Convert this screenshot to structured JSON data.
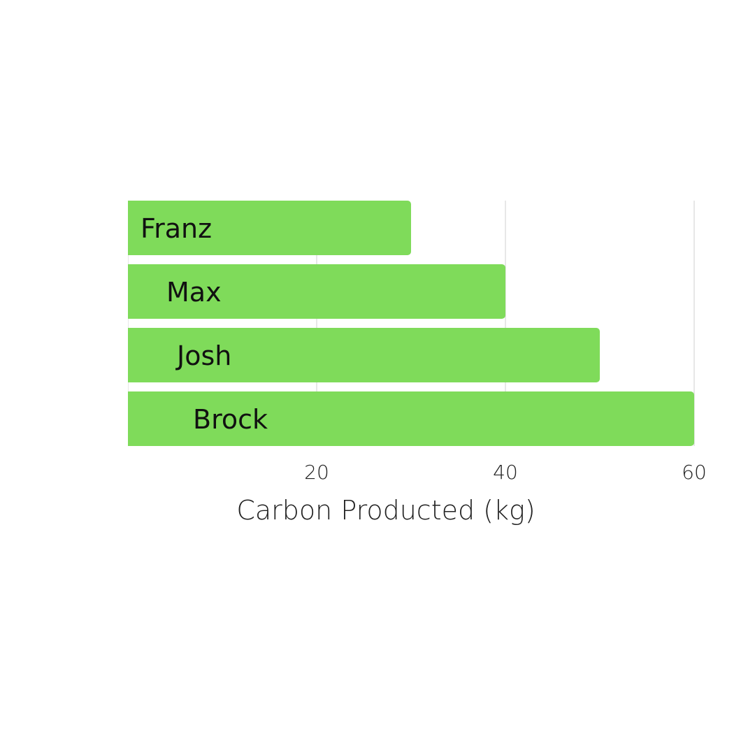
{
  "chart_data": {
    "type": "bar",
    "orientation": "horizontal",
    "categories": [
      "Franz",
      "Max",
      "Josh",
      "Brock"
    ],
    "values": [
      30,
      40,
      50,
      60
    ],
    "xlabel": "Carbon Producted (kg)",
    "xlim": [
      0,
      60
    ],
    "xticks": [
      20,
      40,
      60
    ],
    "grid": true,
    "bar_color": "#7fdb5a"
  }
}
